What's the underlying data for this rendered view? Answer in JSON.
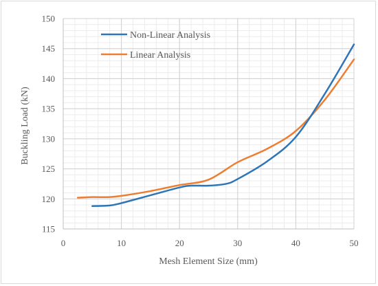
{
  "chart_data": {
    "type": "line",
    "title": "",
    "xlabel": "Mesh Element Size (mm)",
    "ylabel": "Buckling Load (kN)",
    "xlim": [
      0,
      50
    ],
    "ylim": [
      115,
      150
    ],
    "xticks": [
      0,
      10,
      20,
      30,
      40,
      50
    ],
    "yticks": [
      115,
      120,
      125,
      130,
      135,
      140,
      145,
      150
    ],
    "grid": true,
    "legend_position": "top-left",
    "series": [
      {
        "name": "Non-Linear Analysis",
        "color": "#2e75b6",
        "points": [
          [
            5,
            118.8
          ],
          [
            8,
            118.9
          ],
          [
            10,
            119.3
          ],
          [
            15,
            120.6
          ],
          [
            20,
            121.9
          ],
          [
            22,
            122.2
          ],
          [
            25,
            122.2
          ],
          [
            28,
            122.5
          ],
          [
            30,
            123.3
          ],
          [
            35,
            126.2
          ],
          [
            40,
            130.3
          ],
          [
            45,
            137.5
          ],
          [
            50,
            145.7
          ]
        ]
      },
      {
        "name": "Linear Analysis",
        "color": "#ed7d31",
        "points": [
          [
            2.5,
            120.2
          ],
          [
            5,
            120.3
          ],
          [
            8,
            120.3
          ],
          [
            10,
            120.5
          ],
          [
            15,
            121.3
          ],
          [
            20,
            122.3
          ],
          [
            25,
            123.2
          ],
          [
            30,
            126.1
          ],
          [
            35,
            128.3
          ],
          [
            40,
            131.3
          ],
          [
            45,
            136.5
          ],
          [
            50,
            143.2
          ]
        ]
      }
    ]
  }
}
